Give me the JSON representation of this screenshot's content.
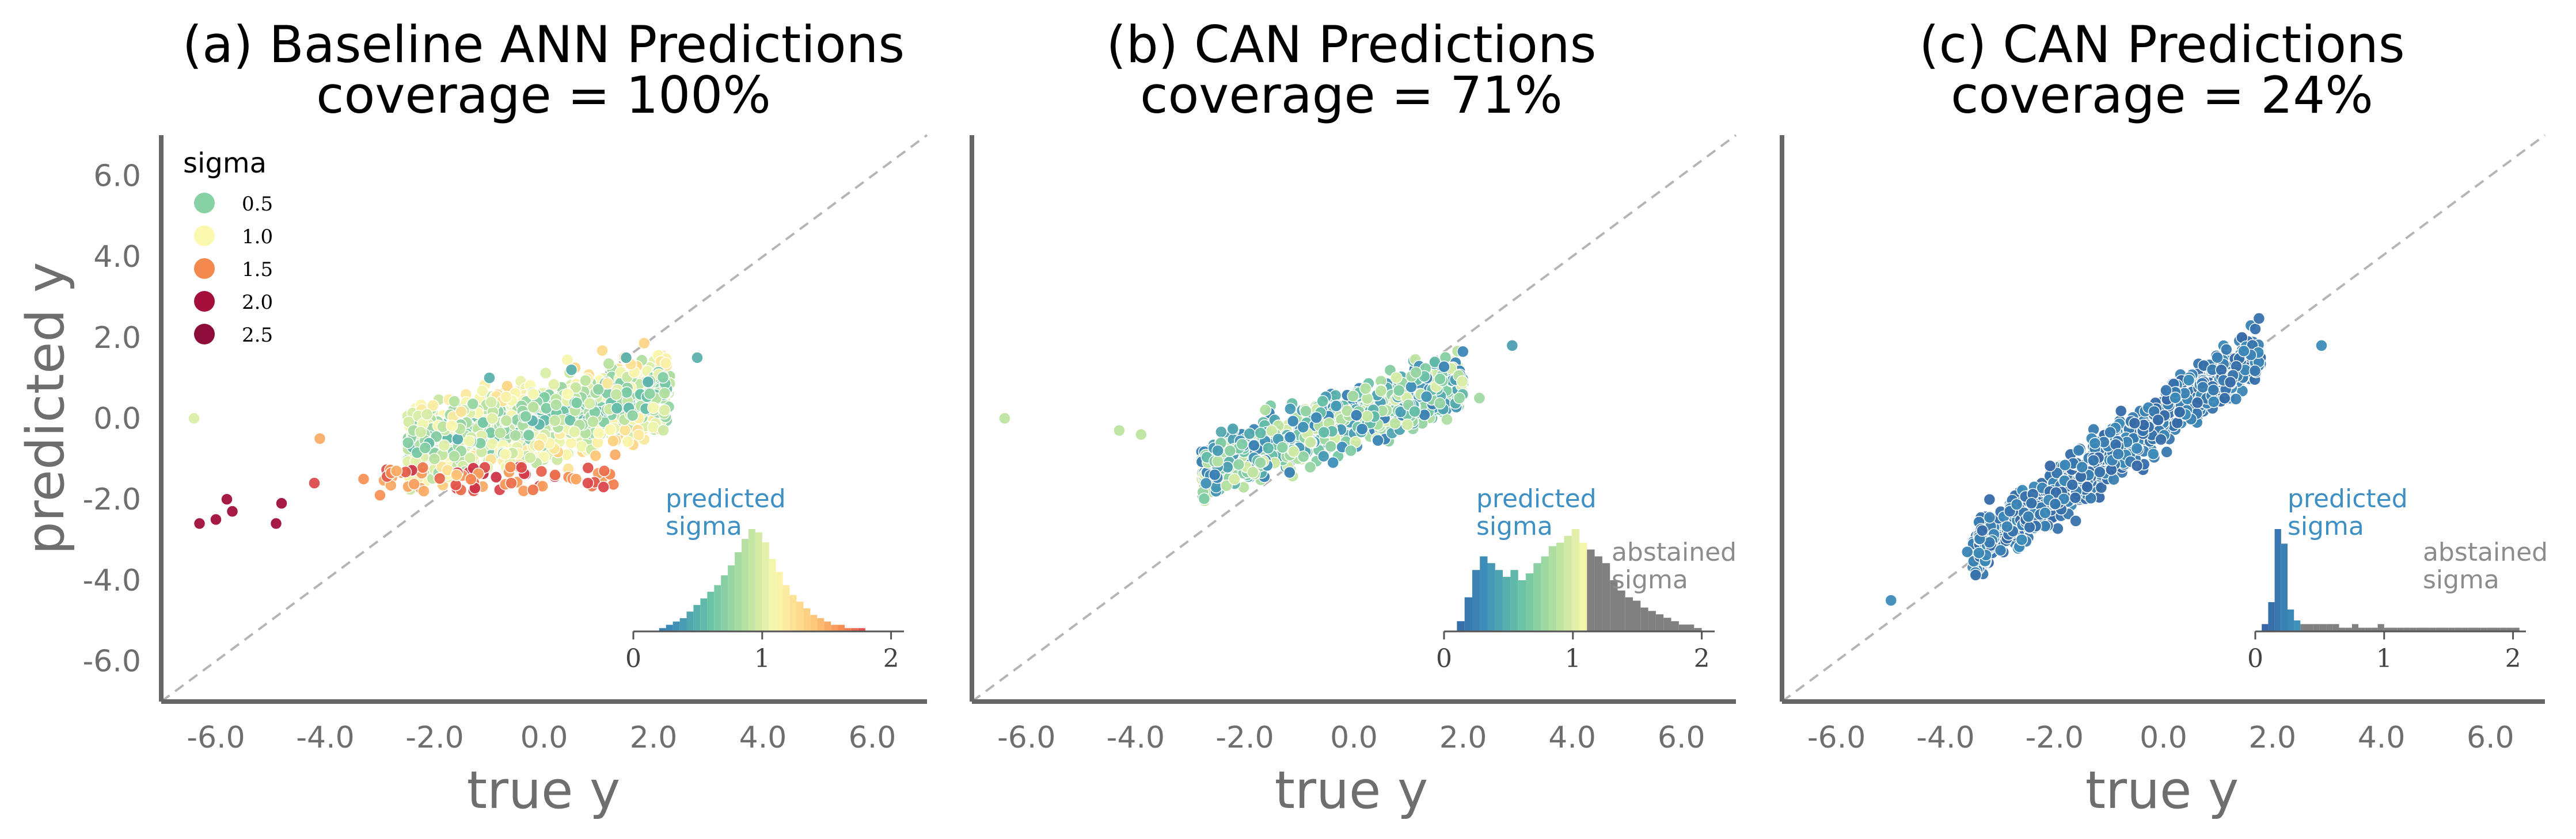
{
  "figure": {
    "panels": [
      {
        "title_line1": "(a) Baseline ANN Predictions",
        "title_line2": "coverage = 100%",
        "xlabel": "true y",
        "ylabel": "predicted y",
        "legend": {
          "title": "sigma",
          "items": [
            {
              "label": "0.5",
              "color": "#88d1a4"
            },
            {
              "label": "1.0",
              "color": "#fbf8b0"
            },
            {
              "label": "1.5",
              "color": "#f4894f"
            },
            {
              "label": "2.0",
              "color": "#a50f3c"
            },
            {
              "label": "2.5",
              "color": "#8e0c3a"
            }
          ]
        },
        "inset": {
          "label": "predicted\nsigma",
          "abstained_label": ""
        }
      },
      {
        "title_line1": "(b) CAN Predictions",
        "title_line2": "coverage = 71%",
        "xlabel": "true y",
        "ylabel": "",
        "inset": {
          "label": "predicted\nsigma",
          "abstained_label": "abstained\nsigma"
        }
      },
      {
        "title_line1": "(c) CAN Predictions",
        "title_line2": "coverage = 24%",
        "xlabel": "true y",
        "ylabel": "",
        "inset": {
          "label": "predicted\nsigma",
          "abstained_label": "abstained\nsigma"
        }
      }
    ]
  },
  "chart_data": [
    {
      "type": "scatter",
      "title": "(a) Baseline ANN Predictions coverage = 100%",
      "xlabel": "true y",
      "ylabel": "predicted y",
      "xlim": [
        -7,
        7
      ],
      "ylim": [
        -7,
        7
      ],
      "xticks": [
        "-6.0",
        "-4.0",
        "-2.0",
        "0.0",
        "2.0",
        "4.0",
        "6.0"
      ],
      "yticks": [
        "-6.0",
        "-4.0",
        "-2.0",
        "0.0",
        "2.0",
        "4.0",
        "6.0"
      ],
      "reference_line": "y = x (dashed)",
      "color_by": "sigma",
      "cloud": {
        "x_range": [
          -2.5,
          2.3
        ],
        "y_range": [
          -1.2,
          1.2
        ],
        "sigma_range": [
          0.3,
          1.5
        ]
      },
      "points": [
        [
          -6.4,
          0.0,
          1.0
        ],
        [
          -6.3,
          -2.6,
          2.3
        ],
        [
          -6.0,
          -2.5,
          2.3
        ],
        [
          -5.8,
          -2.0,
          2.3
        ],
        [
          -5.7,
          -2.3,
          2.3
        ],
        [
          -4.9,
          -2.6,
          2.2
        ],
        [
          -4.8,
          -2.1,
          2.0
        ],
        [
          -4.1,
          -0.5,
          1.5
        ],
        [
          -4.2,
          -1.6,
          1.8
        ],
        [
          -3.0,
          -1.9,
          1.6
        ],
        [
          -3.3,
          -1.5,
          1.6
        ],
        [
          -2.7,
          -1.3,
          1.5
        ],
        [
          -2.2,
          -1.8,
          1.5
        ],
        [
          -1.6,
          -1.4,
          1.4
        ],
        [
          -0.6,
          -1.6,
          1.7
        ],
        [
          0.2,
          -1.4,
          1.7
        ],
        [
          0.8,
          -1.6,
          1.8
        ],
        [
          1.1,
          -1.3,
          1.7
        ],
        [
          1.3,
          -0.9,
          1.5
        ],
        [
          -1.0,
          1.0,
          0.5
        ],
        [
          0.5,
          1.2,
          0.5
        ],
        [
          1.5,
          1.5,
          0.5
        ],
        [
          2.8,
          1.5,
          0.5
        ],
        [
          2.2,
          0.2,
          1.0
        ],
        [
          1.9,
          0.9,
          0.5
        ]
      ],
      "inset_histogram": {
        "label": "predicted sigma",
        "xlim": [
          0,
          2.1
        ],
        "xticks": [
          "0",
          "1",
          "2"
        ],
        "bins": [
          0.2,
          1.8
        ],
        "counts": [
          1,
          2,
          3,
          4,
          6,
          8,
          10,
          12,
          14,
          17,
          20,
          24,
          28,
          31,
          30,
          27,
          22,
          18,
          14,
          11,
          9,
          7,
          5,
          4,
          3,
          2,
          2,
          1,
          1,
          1
        ]
      }
    },
    {
      "type": "scatter",
      "title": "(b) CAN Predictions coverage = 71%",
      "xlabel": "true y",
      "ylabel": "",
      "xlim": [
        -7,
        7
      ],
      "ylim": [
        -7,
        7
      ],
      "xticks": [
        "-6.0",
        "-4.0",
        "-2.0",
        "0.0",
        "2.0",
        "4.0",
        "6.0"
      ],
      "yticks": [],
      "reference_line": "y = x (dashed)",
      "color_by": "sigma",
      "cloud": {
        "x_range": [
          -2.8,
          2.0
        ],
        "y_range": [
          -1.8,
          1.3
        ],
        "sigma_range": [
          0.2,
          1.0
        ]
      },
      "points": [
        [
          -6.4,
          0.0,
          0.9
        ],
        [
          2.9,
          1.8,
          0.4
        ],
        [
          -3.9,
          -0.4,
          0.9
        ],
        [
          -4.3,
          -0.3,
          0.9
        ],
        [
          2.3,
          0.5,
          0.8
        ]
      ],
      "inset_histogram": {
        "label": "predicted sigma",
        "abstained_label": "abstained sigma",
        "xlim": [
          0,
          2.1
        ],
        "xticks": [
          "0",
          "1",
          "2"
        ],
        "bins": [
          0.1,
          2.0
        ],
        "threshold": 1.1,
        "counts": [
          3,
          10,
          18,
          22,
          20,
          18,
          16,
          18,
          15,
          17,
          20,
          22,
          25,
          26,
          28,
          30,
          26,
          24,
          22,
          20,
          15,
          12,
          10,
          9,
          7,
          6,
          5,
          4,
          3,
          2,
          2,
          1
        ]
      }
    },
    {
      "type": "scatter",
      "title": "(c) CAN Predictions coverage = 24%",
      "xlabel": "true y",
      "ylabel": "",
      "xlim": [
        -7,
        7
      ],
      "ylim": [
        -7,
        7
      ],
      "xticks": [
        "-6.0",
        "-4.0",
        "-2.0",
        "0.0",
        "2.0",
        "4.0",
        "6.0"
      ],
      "yticks": [],
      "reference_line": "y = x (dashed)",
      "color_by": "sigma",
      "cloud": {
        "x_range": [
          -3.5,
          1.8
        ],
        "spread": 0.35,
        "sigma_range": [
          0.05,
          0.3
        ]
      },
      "points": [
        [
          -5.0,
          -4.5,
          0.3
        ],
        [
          2.9,
          1.8,
          0.3
        ],
        [
          -3.6,
          -3.3,
          0.25
        ],
        [
          -2.6,
          -3.0,
          0.3
        ]
      ],
      "inset_histogram": {
        "label": "predicted sigma",
        "abstained_label": "abstained sigma",
        "xlim": [
          0,
          2.1
        ],
        "xticks": [
          "0",
          "1",
          "2"
        ],
        "bins": [
          0.05,
          2.05
        ],
        "threshold": 0.35,
        "counts": [
          2,
          8,
          28,
          24,
          6,
          3,
          2,
          2,
          2,
          2,
          2,
          2,
          1,
          1,
          2,
          1,
          1,
          1,
          2,
          1,
          1,
          1,
          1,
          1,
          1,
          1,
          1,
          1,
          1,
          1,
          1,
          1,
          1,
          1,
          1,
          1,
          1,
          1,
          1,
          1
        ]
      }
    }
  ]
}
